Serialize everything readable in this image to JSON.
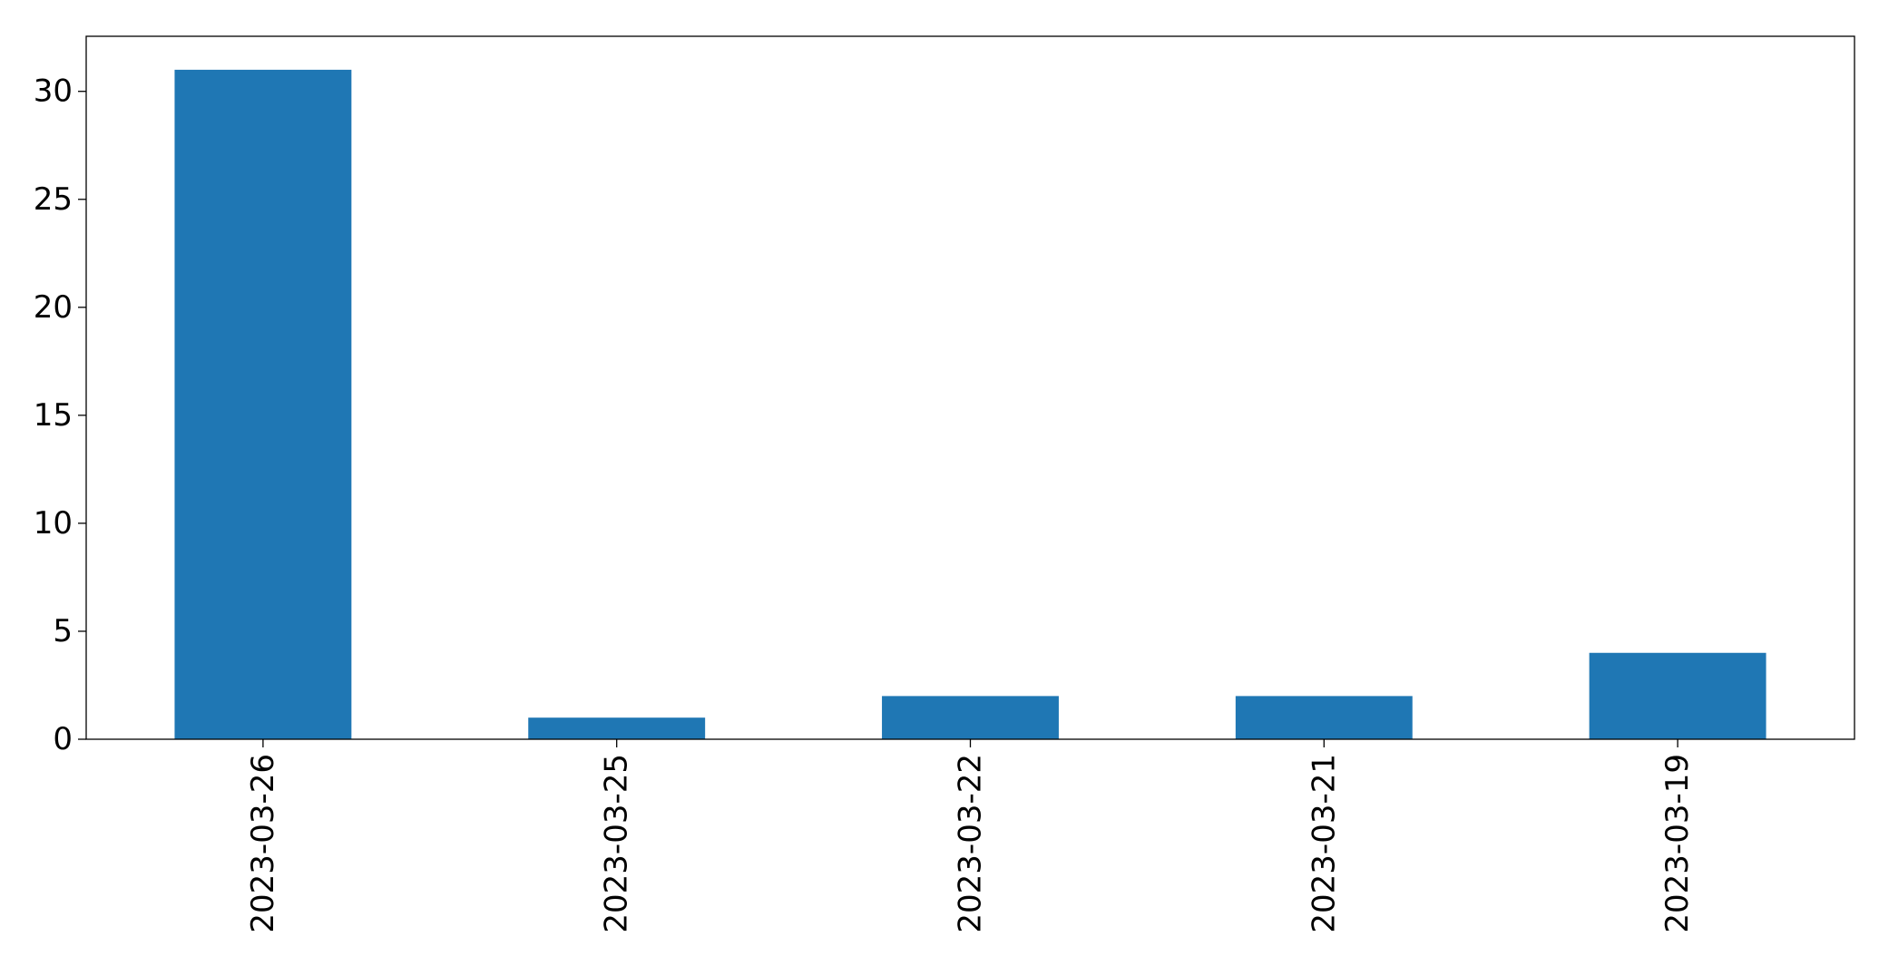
{
  "chart_data": {
    "type": "bar",
    "title": "",
    "xlabel": "",
    "ylabel": "",
    "categories": [
      "2023-03-26",
      "2023-03-25",
      "2023-03-22",
      "2023-03-21",
      "2023-03-19"
    ],
    "values": [
      31,
      1,
      2,
      2,
      4
    ],
    "ylim": [
      0,
      32.55
    ],
    "yticks": [
      0,
      5,
      10,
      15,
      20,
      25,
      30
    ],
    "bar_color": "#1f77b4",
    "grid": false,
    "legend": "none",
    "xtick_rotation": "vertical"
  }
}
